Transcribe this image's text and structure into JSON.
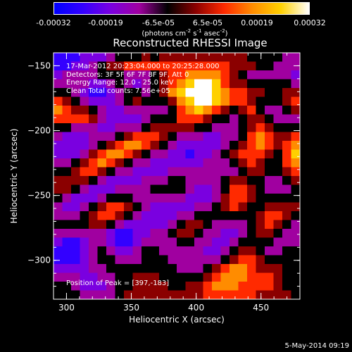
{
  "colorbar": {
    "ticks": [
      "-0.00032",
      "-0.00019",
      "-6.5e-05",
      "6.5e-05",
      "0.00019",
      "0.00032"
    ],
    "unit_main": "(photons cm",
    "unit_exp1": "-2",
    "unit_s": " s",
    "unit_exp2": "-1",
    "unit_asec": " asec",
    "unit_exp3": "-2",
    "unit_close": ")",
    "colors": [
      "#0000ff",
      "#3300ff",
      "#7a00e0",
      "#a000a0",
      "#000000",
      "#8b0000",
      "#ff2a00",
      "#ff8c00",
      "#ffd000",
      "#ffffff"
    ]
  },
  "info": {
    "line1": "17-Mar-2012 20:23:04.000 to 20:25:28.000",
    "line2": "Detectors: 3F 5F 6F 7F 8F 9F, Att 0",
    "line3": "Energy Range: 12.0 - 25.0 keV",
    "line4": "Clean     Total counts: 7.56e+05"
  },
  "peak_text": "Position of Peak = [397,-183]",
  "footer": "5-May-2014 09:19",
  "chart_data": {
    "type": "heatmap",
    "title": "Reconstructed RHESSI Image",
    "xlabel": "Heliocentric X (arcsec)",
    "ylabel": "Heliocentric Y (arcsec)",
    "xlim": [
      290,
      480
    ],
    "ylim": [
      -330,
      -140
    ],
    "xticks": [
      300,
      350,
      400,
      450
    ],
    "yticks": [
      -150,
      -200,
      -250,
      -300
    ],
    "colorbar_range": [
      -0.00032,
      0.00032
    ],
    "peak": [
      397,
      -183
    ],
    "intensity_grid": [
      [
        1,
        1,
        1,
        2,
        2,
        2,
        3,
        4,
        4,
        4,
        5,
        4,
        5,
        5,
        5,
        5,
        5,
        5,
        5,
        5,
        5,
        5,
        4,
        4,
        4,
        4,
        3,
        3
      ],
      [
        1,
        1,
        2,
        2,
        3,
        4,
        5,
        5,
        6,
        6,
        6,
        6,
        6,
        6,
        6,
        6,
        6,
        6,
        6,
        6,
        5,
        5,
        5,
        4,
        4,
        3,
        3,
        3
      ],
      [
        2,
        3,
        3,
        3,
        3,
        4,
        4,
        4,
        3,
        3,
        3,
        4,
        5,
        6,
        6,
        7,
        7,
        7,
        7,
        6,
        5,
        4,
        3,
        3,
        3,
        3,
        3,
        2
      ],
      [
        3,
        3,
        3,
        3,
        2,
        2,
        3,
        4,
        3,
        2,
        3,
        4,
        5,
        6,
        7,
        8,
        9,
        9,
        8,
        6,
        5,
        5,
        4,
        4,
        4,
        4,
        4,
        3
      ],
      [
        4,
        4,
        3,
        2,
        1,
        1,
        2,
        3,
        4,
        4,
        3,
        4,
        5,
        7,
        8,
        9,
        10,
        9,
        8,
        7,
        6,
        6,
        5,
        5,
        4,
        4,
        5,
        5
      ],
      [
        6,
        5,
        4,
        3,
        2,
        2,
        2,
        3,
        4,
        5,
        4,
        4,
        4,
        5,
        7,
        8,
        9,
        9,
        8,
        7,
        6,
        6,
        5,
        4,
        4,
        4,
        5,
        6
      ],
      [
        7,
        6,
        5,
        5,
        4,
        3,
        2,
        2,
        3,
        3,
        3,
        3,
        3,
        4,
        6,
        7,
        8,
        7,
        6,
        5,
        4,
        5,
        6,
        4,
        3,
        3,
        4,
        5
      ],
      [
        6,
        6,
        6,
        6,
        5,
        3,
        2,
        2,
        2,
        2,
        3,
        4,
        4,
        4,
        6,
        6,
        6,
        5,
        4,
        4,
        3,
        4,
        5,
        5,
        4,
        3,
        3,
        3
      ],
      [
        4,
        4,
        3,
        3,
        3,
        2,
        2,
        3,
        3,
        3,
        4,
        5,
        5,
        5,
        5,
        5,
        4,
        4,
        3,
        3,
        3,
        4,
        5,
        6,
        5,
        4,
        4,
        4
      ],
      [
        3,
        2,
        2,
        2,
        3,
        3,
        3,
        4,
        5,
        6,
        6,
        6,
        5,
        4,
        3,
        3,
        3,
        2,
        2,
        3,
        3,
        4,
        6,
        7,
        6,
        5,
        5,
        6
      ],
      [
        2,
        2,
        2,
        2,
        3,
        4,
        5,
        6,
        7,
        7,
        6,
        5,
        4,
        3,
        2,
        2,
        2,
        2,
        2,
        3,
        4,
        5,
        6,
        7,
        6,
        5,
        6,
        7
      ],
      [
        2,
        2,
        2,
        3,
        5,
        6,
        7,
        7,
        6,
        5,
        4,
        3,
        3,
        2,
        2,
        1,
        2,
        2,
        3,
        4,
        5,
        6,
        6,
        6,
        5,
        4,
        6,
        8
      ],
      [
        3,
        3,
        4,
        5,
        6,
        7,
        6,
        5,
        4,
        3,
        3,
        2,
        2,
        2,
        2,
        2,
        2,
        3,
        3,
        3,
        4,
        5,
        6,
        5,
        4,
        4,
        6,
        7
      ],
      [
        4,
        4,
        5,
        6,
        6,
        5,
        4,
        3,
        3,
        2,
        2,
        2,
        2,
        3,
        3,
        3,
        3,
        3,
        3,
        3,
        3,
        4,
        5,
        5,
        4,
        4,
        5,
        6
      ],
      [
        5,
        5,
        5,
        5,
        4,
        3,
        2,
        2,
        2,
        2,
        3,
        3,
        3,
        4,
        4,
        3,
        3,
        3,
        3,
        4,
        5,
        5,
        4,
        4,
        3,
        3,
        4,
        5
      ],
      [
        5,
        5,
        4,
        3,
        2,
        2,
        2,
        3,
        3,
        3,
        3,
        4,
        4,
        4,
        4,
        3,
        2,
        2,
        3,
        4,
        6,
        6,
        5,
        4,
        3,
        3,
        3,
        4
      ],
      [
        4,
        3,
        2,
        2,
        2,
        3,
        4,
        4,
        4,
        3,
        3,
        3,
        3,
        3,
        3,
        2,
        2,
        2,
        3,
        5,
        6,
        6,
        5,
        4,
        4,
        4,
        4,
        4
      ],
      [
        3,
        2,
        2,
        3,
        4,
        5,
        6,
        6,
        5,
        4,
        3,
        2,
        2,
        2,
        2,
        2,
        3,
        3,
        4,
        5,
        6,
        5,
        4,
        4,
        5,
        5,
        5,
        5
      ],
      [
        3,
        3,
        3,
        4,
        5,
        6,
        6,
        5,
        4,
        3,
        2,
        2,
        2,
        2,
        3,
        3,
        4,
        4,
        4,
        4,
        4,
        4,
        4,
        5,
        6,
        6,
        5,
        4
      ],
      [
        4,
        4,
        4,
        4,
        5,
        5,
        4,
        3,
        2,
        2,
        2,
        2,
        2,
        3,
        4,
        5,
        5,
        4,
        3,
        3,
        3,
        3,
        4,
        5,
        6,
        5,
        4,
        3
      ],
      [
        3,
        3,
        3,
        3,
        3,
        3,
        2,
        1,
        1,
        2,
        2,
        3,
        3,
        4,
        5,
        5,
        4,
        3,
        3,
        2,
        2,
        3,
        4,
        5,
        5,
        4,
        3,
        3
      ],
      [
        2,
        1,
        1,
        2,
        3,
        3,
        2,
        1,
        1,
        2,
        3,
        3,
        3,
        3,
        4,
        4,
        3,
        3,
        2,
        2,
        3,
        4,
        4,
        4,
        4,
        3,
        3,
        3
      ],
      [
        1,
        1,
        1,
        2,
        3,
        4,
        3,
        2,
        2,
        3,
        4,
        4,
        3,
        3,
        3,
        3,
        3,
        2,
        2,
        3,
        4,
        5,
        5,
        4,
        3,
        3,
        4,
        4
      ],
      [
        1,
        1,
        1,
        2,
        3,
        4,
        4,
        3,
        3,
        3,
        4,
        4,
        4,
        3,
        3,
        3,
        3,
        3,
        3,
        4,
        5,
        6,
        6,
        5,
        4,
        4,
        4,
        4
      ],
      [
        2,
        2,
        2,
        2,
        3,
        3,
        4,
        4,
        4,
        4,
        4,
        4,
        4,
        4,
        3,
        3,
        3,
        4,
        5,
        6,
        7,
        7,
        6,
        5,
        5,
        5,
        4,
        4
      ],
      [
        3,
        3,
        3,
        2,
        2,
        3,
        3,
        4,
        4,
        5,
        5,
        5,
        4,
        4,
        4,
        4,
        4,
        5,
        6,
        7,
        7,
        7,
        6,
        6,
        6,
        5,
        4,
        4
      ],
      [
        4,
        4,
        3,
        2,
        2,
        2,
        3,
        4,
        4,
        5,
        5,
        5,
        5,
        4,
        4,
        5,
        5,
        6,
        7,
        7,
        7,
        6,
        6,
        6,
        6,
        5,
        4,
        4
      ],
      [
        4,
        4,
        4,
        3,
        3,
        3,
        3,
        4,
        5,
        5,
        5,
        5,
        5,
        5,
        5,
        5,
        5,
        6,
        6,
        6,
        6,
        6,
        6,
        5,
        5,
        5,
        5,
        4
      ]
    ]
  }
}
